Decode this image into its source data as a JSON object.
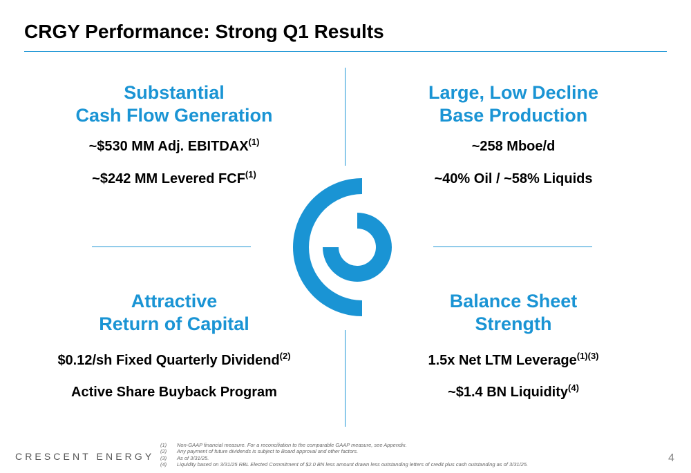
{
  "slide": {
    "title": "CRGY Performance: Strong Q1 Results",
    "page_number": "4",
    "brand": "CRESCENT ENERGY"
  },
  "quadrants": {
    "top_left": {
      "heading_line1": "Substantial",
      "heading_line2": "Cash Flow Generation",
      "items": [
        {
          "text": "~$530 MM Adj. EBITDAX",
          "sup": "(1)"
        },
        {
          "text": "~$242 MM Levered FCF",
          "sup": "(1)"
        }
      ]
    },
    "top_right": {
      "heading_line1": "Large, Low Decline",
      "heading_line2": "Base Production",
      "items": [
        {
          "text": "~258 Mboe/d",
          "sup": ""
        },
        {
          "text": "~40% Oil / ~58% Liquids",
          "sup": ""
        }
      ]
    },
    "bottom_left": {
      "heading_line1": "Attractive",
      "heading_line2": "Return of Capital",
      "items": [
        {
          "text": "$0.12/sh Fixed Quarterly Dividend",
          "sup": "(2)"
        },
        {
          "text": "Active Share Buyback Program",
          "sup": ""
        }
      ]
    },
    "bottom_right": {
      "heading_line1": "Balance Sheet",
      "heading_line2": "Strength",
      "items": [
        {
          "text": "1.5x Net LTM Leverage",
          "sup": "(1)(3)"
        },
        {
          "text": "~$1.4 BN Liquidity",
          "sup": "(4)"
        }
      ]
    }
  },
  "footnotes": [
    {
      "num": "(1)",
      "text": "Non-GAAP financial measure. For a reconciliation to the comparable GAAP measure, see Appendix."
    },
    {
      "num": "(2)",
      "text": "Any payment of future dividends is subject to Board approval and other factors."
    },
    {
      "num": "(3)",
      "text": "As of 3/31/25."
    },
    {
      "num": "(4)",
      "text": "Liquidity based on 3/31/25 RBL Elected Commitment of $2.0 BN less amount drawn less outstanding letters of credit plus cash outstanding as of 3/31/25."
    }
  ],
  "colors": {
    "accent": "#1a94d4",
    "text": "#000000",
    "footnote": "#666666"
  },
  "logo_icon": "crescent-logo-icon"
}
